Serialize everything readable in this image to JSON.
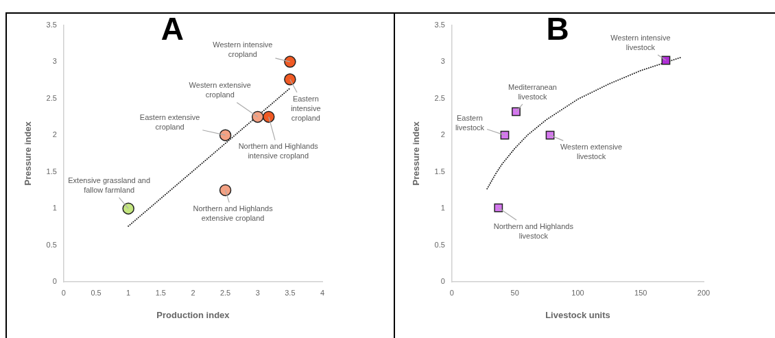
{
  "chart_data": [
    {
      "type": "scatter",
      "title": "A",
      "xlabel": "Production index",
      "ylabel": "Pressure index",
      "xlim": [
        0,
        4
      ],
      "xticks": [
        0,
        0.5,
        1,
        1.5,
        2,
        2.5,
        3,
        3.5,
        4
      ],
      "ylim": [
        0,
        3.5
      ],
      "yticks": [
        0,
        0.5,
        1,
        1.5,
        2,
        2.5,
        3,
        3.5
      ],
      "grid": false,
      "legend": false,
      "series": [
        {
          "type": "scatter",
          "marker": "circle",
          "x": [
            3.5,
            3.5,
            3,
            3.17,
            2.5,
            1,
            2.5
          ],
          "values": [
            3.0,
            2.76,
            2.25,
            2.25,
            2.0,
            1.0,
            1.25
          ],
          "colors": [
            "#f05a24",
            "#f05a24",
            "#f4a183",
            "#f05a24",
            "#f4a183",
            "#c3e57f",
            "#f4a183"
          ]
        },
        {
          "type": "line",
          "marker": "none",
          "line_style": "dotted",
          "color": "#222222",
          "x": [
            1,
            3.5
          ],
          "values": [
            0.76,
            2.64
          ]
        }
      ],
      "annotations": [
        {
          "text": "Western intensive cropland",
          "x": 3.5,
          "y": 3.0
        },
        {
          "text": "Eastern intensive cropland",
          "x": 3.5,
          "y": 2.76
        },
        {
          "text": "Western extensive cropland",
          "x": 3,
          "y": 2.25
        },
        {
          "text": "Northern and Highlands intensive cropland",
          "x": 3.17,
          "y": 2.25
        },
        {
          "text": "Eastern extensive cropland",
          "x": 2.5,
          "y": 2.0
        },
        {
          "text": "Extensive grassland and fallow farmland",
          "x": 1,
          "y": 1.0
        },
        {
          "text": "Northern and Highlands extensive cropland",
          "x": 2.5,
          "y": 1.25
        }
      ]
    },
    {
      "type": "scatter",
      "title": "B",
      "xlabel": "Livestock units",
      "ylabel": "Pressure index",
      "xlim": [
        0,
        200
      ],
      "xticks": [
        0,
        50,
        100,
        150,
        200
      ],
      "ylim": [
        0,
        3.5
      ],
      "yticks": [
        0,
        0.5,
        1,
        1.5,
        2,
        2.5,
        3,
        3.5
      ],
      "grid": false,
      "legend": false,
      "series": [
        {
          "type": "scatter",
          "marker": "square",
          "x": [
            170,
            51,
            42,
            78,
            37
          ],
          "values": [
            3.02,
            2.32,
            2.0,
            2.0,
            1.01
          ],
          "colors": [
            "#b02fd6",
            "#d577ef",
            "#d577ef",
            "#d577ef",
            "#d577ef"
          ]
        },
        {
          "type": "line",
          "marker": "none",
          "line_style": "dotted",
          "color": "#222222",
          "x": [
            28,
            35,
            40,
            50,
            60,
            75,
            100,
            125,
            150,
            182
          ],
          "values": [
            1.27,
            1.48,
            1.61,
            1.82,
            2.0,
            2.21,
            2.49,
            2.7,
            2.88,
            3.06
          ]
        }
      ],
      "annotations": [
        {
          "text": "Western intensive livestock",
          "x": 170,
          "y": 3.02
        },
        {
          "text": "Mediterranean livestock",
          "x": 51,
          "y": 2.32
        },
        {
          "text": "Eastern livestock",
          "x": 42,
          "y": 2.0
        },
        {
          "text": "Western extensive livestock",
          "x": 78,
          "y": 2.0
        },
        {
          "text": "Northern and Highlands livestock",
          "x": 37,
          "y": 1.01
        }
      ]
    }
  ]
}
